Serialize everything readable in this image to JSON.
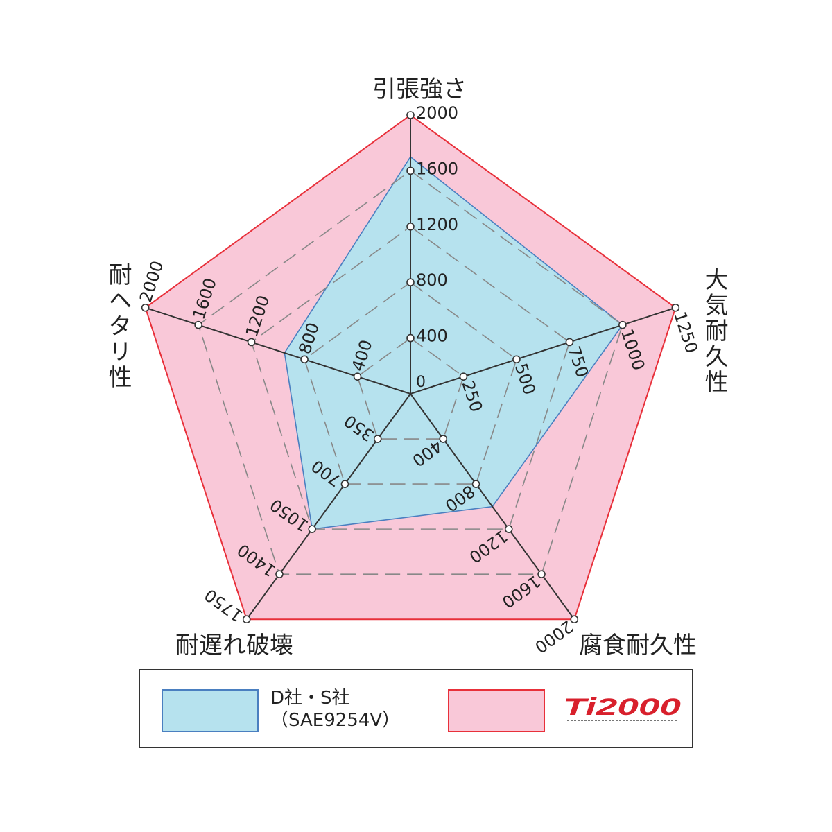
{
  "chart_data": {
    "type": "radar",
    "axes": [
      {
        "label": "引張強さ",
        "max": 2000,
        "ticks": [
          "0",
          "400",
          "800",
          "1200",
          "1600",
          "2000"
        ]
      },
      {
        "label": "大気耐久性",
        "max": 1250,
        "ticks": [
          "0",
          "250",
          "500",
          "750",
          "1000",
          "1250"
        ]
      },
      {
        "label": "腐食耐久性",
        "max": 2000,
        "ticks": [
          "0",
          "400",
          "800",
          "1200",
          "1600",
          "2000"
        ]
      },
      {
        "label": "耐遅れ破壊",
        "max": 1750,
        "ticks": [
          "0",
          "350",
          "700",
          "1050",
          "1400",
          "1750"
        ]
      },
      {
        "label": "耐ヘタリ性",
        "max": 2000,
        "ticks": [
          "0",
          "400",
          "800",
          "1200",
          "1600",
          "2000"
        ]
      }
    ],
    "series": [
      {
        "name": "Ti2000",
        "values": [
          2000,
          1250,
          2000,
          1750,
          2000
        ],
        "fill": "#f9c8d8",
        "stroke": "#e8303a"
      },
      {
        "name": "D社・S社 (SAE9254V)",
        "values": [
          1700,
          1000,
          1000,
          1050,
          950
        ],
        "fill": "#b6e2ee",
        "stroke": "#4a7fc0"
      }
    ],
    "grid": true,
    "legend": "bottom"
  },
  "legend": {
    "item1_line1": "D社・S社",
    "item1_line2": "（SAE9254V）",
    "item2_logo": "Ti2000"
  }
}
